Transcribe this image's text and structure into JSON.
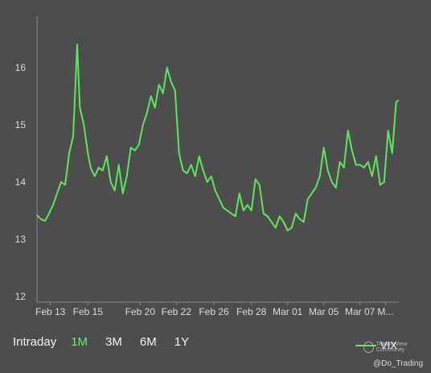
{
  "chart_data": {
    "type": "line",
    "series": [
      {
        "name": "VIX",
        "color": "#5ce65c",
        "points": [
          [
            0,
            13.42
          ],
          [
            0.3,
            13.35
          ],
          [
            0.6,
            13.32
          ],
          [
            0.9,
            13.45
          ],
          [
            1.2,
            13.6
          ],
          [
            1.5,
            13.8
          ],
          [
            1.8,
            14.0
          ],
          [
            2.1,
            13.95
          ],
          [
            2.4,
            14.5
          ],
          [
            2.7,
            14.8
          ],
          [
            3.0,
            16.4
          ],
          [
            3.2,
            15.3
          ],
          [
            3.5,
            15.0
          ],
          [
            3.8,
            14.5
          ],
          [
            4.0,
            14.25
          ],
          [
            4.3,
            14.1
          ],
          [
            4.6,
            14.25
          ],
          [
            4.9,
            14.2
          ],
          [
            5.2,
            14.45
          ],
          [
            5.5,
            14.0
          ],
          [
            5.8,
            13.85
          ],
          [
            6.1,
            14.3
          ],
          [
            6.4,
            13.8
          ],
          [
            6.7,
            14.1
          ],
          [
            7.0,
            14.6
          ],
          [
            7.3,
            14.55
          ],
          [
            7.6,
            14.65
          ],
          [
            7.9,
            15.0
          ],
          [
            8.2,
            15.2
          ],
          [
            8.5,
            15.5
          ],
          [
            8.8,
            15.3
          ],
          [
            9.1,
            15.7
          ],
          [
            9.4,
            15.55
          ],
          [
            9.7,
            16.0
          ],
          [
            10.0,
            15.75
          ],
          [
            10.3,
            15.6
          ],
          [
            10.6,
            14.5
          ],
          [
            10.9,
            14.2
          ],
          [
            11.2,
            14.15
          ],
          [
            11.5,
            14.3
          ],
          [
            11.8,
            14.1
          ],
          [
            12.1,
            14.45
          ],
          [
            12.4,
            14.2
          ],
          [
            12.7,
            14.0
          ],
          [
            13.0,
            14.1
          ],
          [
            13.3,
            13.85
          ],
          [
            13.6,
            13.7
          ],
          [
            13.9,
            13.55
          ],
          [
            14.2,
            13.5
          ],
          [
            14.5,
            13.45
          ],
          [
            14.8,
            13.4
          ],
          [
            15.1,
            13.8
          ],
          [
            15.4,
            13.5
          ],
          [
            15.7,
            13.6
          ],
          [
            16.0,
            13.5
          ],
          [
            16.3,
            14.05
          ],
          [
            16.6,
            13.95
          ],
          [
            16.9,
            13.45
          ],
          [
            17.2,
            13.4
          ],
          [
            17.5,
            13.3
          ],
          [
            17.8,
            13.2
          ],
          [
            18.1,
            13.4
          ],
          [
            18.4,
            13.3
          ],
          [
            18.7,
            13.15
          ],
          [
            19.0,
            13.2
          ],
          [
            19.3,
            13.45
          ],
          [
            19.6,
            13.35
          ],
          [
            19.9,
            13.3
          ],
          [
            20.2,
            13.7
          ],
          [
            20.5,
            13.8
          ],
          [
            20.8,
            13.9
          ],
          [
            21.1,
            14.1
          ],
          [
            21.4,
            14.6
          ],
          [
            21.7,
            14.2
          ],
          [
            22.0,
            14.0
          ],
          [
            22.3,
            13.9
          ],
          [
            22.6,
            14.35
          ],
          [
            22.9,
            14.25
          ],
          [
            23.2,
            14.9
          ],
          [
            23.5,
            14.55
          ],
          [
            23.8,
            14.3
          ],
          [
            24.1,
            14.3
          ],
          [
            24.4,
            14.25
          ],
          [
            24.7,
            14.35
          ],
          [
            25.0,
            14.1
          ],
          [
            25.3,
            14.45
          ],
          [
            25.6,
            13.95
          ],
          [
            25.9,
            14.0
          ],
          [
            26.2,
            14.9
          ],
          [
            26.5,
            14.5
          ],
          [
            26.8,
            15.4
          ],
          [
            27.0,
            15.43
          ]
        ]
      }
    ],
    "x_ticks": [
      {
        "label": "Feb 13",
        "x": 1.0
      },
      {
        "label": "Feb 15",
        "x": 3.8
      },
      {
        "label": "Feb 20",
        "x": 7.7
      },
      {
        "label": "Feb 22",
        "x": 10.4
      },
      {
        "label": "Feb 26",
        "x": 13.2
      },
      {
        "label": "Feb 28",
        "x": 16.0
      },
      {
        "label": "Mar 01",
        "x": 18.7
      },
      {
        "label": "Mar 05",
        "x": 21.4
      },
      {
        "label": "Mar 07",
        "x": 24.1
      },
      {
        "label": "M...",
        "x": 26.0
      }
    ],
    "y_ticks": [
      "12",
      "13",
      "14",
      "15",
      "16"
    ],
    "xlim": [
      0,
      27.0
    ],
    "ylim": [
      11.9,
      16.9
    ],
    "grid": false,
    "legend": "bottom-right"
  },
  "range_selector": {
    "items": [
      {
        "label": "Intraday",
        "active": false
      },
      {
        "label": "1M",
        "active": true
      },
      {
        "label": "3M",
        "active": false
      },
      {
        "label": "6M",
        "active": false
      },
      {
        "label": "1Y",
        "active": false
      }
    ]
  },
  "legend": {
    "label": "VIX"
  },
  "watermark": {
    "text": "TradingView Community"
  },
  "credit": "@Do_Trading"
}
